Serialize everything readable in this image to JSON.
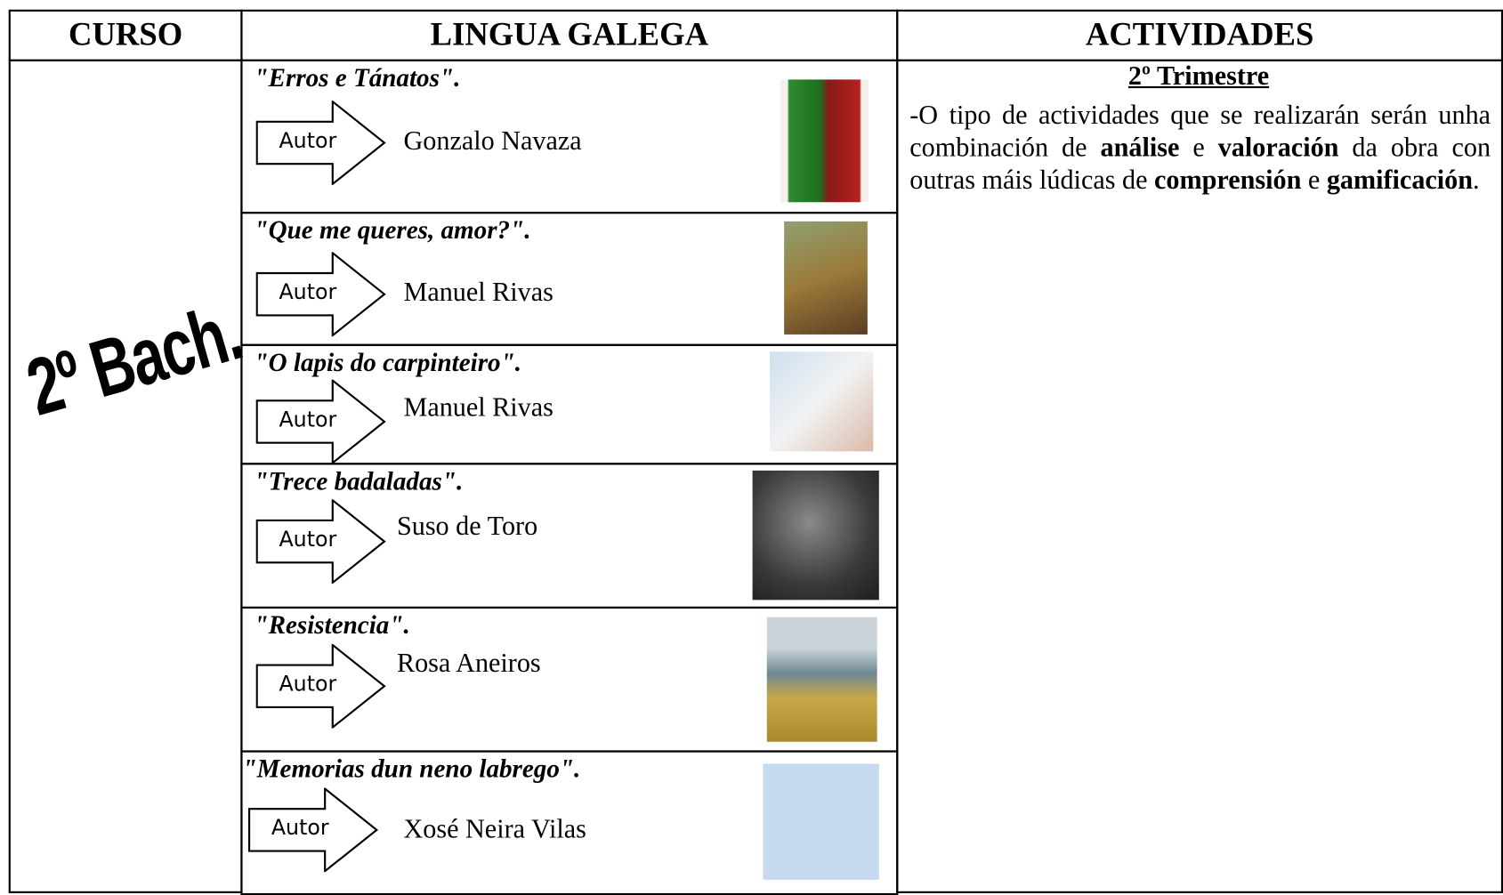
{
  "table": {
    "headers": [
      "CURSO",
      "LINGUA GALEGA",
      "ACTIVIDADES"
    ],
    "course": "2º Bach.",
    "books": [
      {
        "title": "\"Erros e Tánatos\".",
        "author_label": "Autor",
        "author": "Gonzalo Navaza"
      },
      {
        "title": "\"Que me queres, amor?\".",
        "author_label": "Autor",
        "author": "Manuel Rivas"
      },
      {
        "title": "\"O lapis do carpinteiro\".",
        "author_label": "Autor",
        "author": "Manuel Rivas"
      },
      {
        "title": "\"Trece badaladas\".",
        "author_label": "Autor",
        "author": "Suso de Toro"
      },
      {
        "title": "\"Resistencia\".",
        "author_label": "Autor",
        "author": "Rosa Aneiros"
      },
      {
        "title": "\"Memorias dun neno labrego\".",
        "author_label": "Autor",
        "author": "Xosé Neira Vilas"
      }
    ],
    "activities": {
      "heading": "2º Trimestre",
      "segments": [
        {
          "text": "-O tipo de actividades que se realizarán serán unha combinación de ",
          "bold": false
        },
        {
          "text": "análise",
          "bold": true
        },
        {
          "text": " e ",
          "bold": false
        },
        {
          "text": "valoración",
          "bold": true
        },
        {
          "text": " da obra con outras máis lúdicas de ",
          "bold": false
        },
        {
          "text": "comprensión",
          "bold": true
        },
        {
          "text": " e ",
          "bold": false
        },
        {
          "text": "gamificación",
          "bold": true
        },
        {
          "text": ".",
          "bold": false
        }
      ]
    }
  }
}
